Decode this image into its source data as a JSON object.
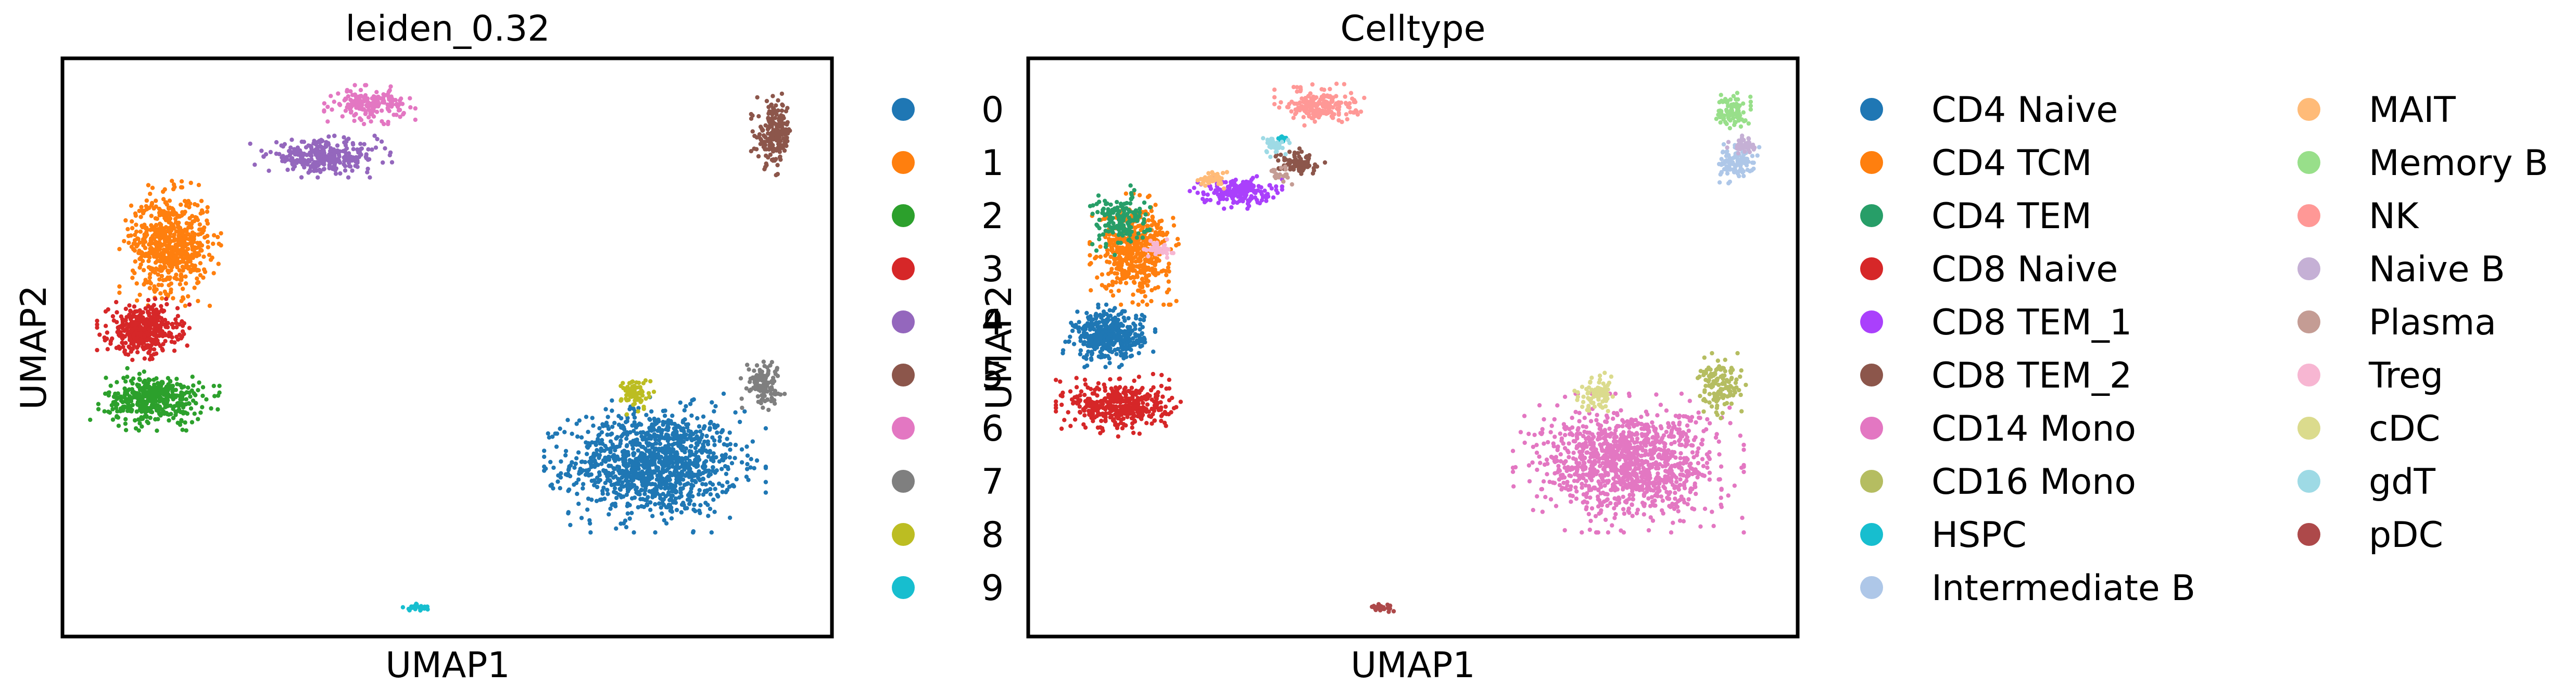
{
  "chart_data": [
    {
      "type": "scatter",
      "title": "leiden_0.32",
      "xlabel": "UMAP1",
      "ylabel": "UMAP2",
      "xlim": [
        0,
        100
      ],
      "ylim": [
        0,
        100
      ],
      "grid": false,
      "ticks": "hidden",
      "legend_position": "right",
      "legend_columns": 1,
      "series": [
        {
          "name": "0",
          "color": "#1f77b4",
          "clusters": [
            {
              "cx": 77,
              "cy": 30,
              "rx": 12,
              "ry": 10,
              "n": 1200
            }
          ]
        },
        {
          "name": "1",
          "color": "#ff7f0e",
          "clusters": [
            {
              "cx": 14,
              "cy": 68,
              "rx": 5.5,
              "ry": 9,
              "n": 650
            }
          ]
        },
        {
          "name": "2",
          "color": "#2ca02c",
          "clusters": [
            {
              "cx": 12,
              "cy": 41,
              "rx": 7,
              "ry": 4.5,
              "n": 420
            }
          ]
        },
        {
          "name": "3",
          "color": "#d62728",
          "clusters": [
            {
              "cx": 10.5,
              "cy": 53,
              "rx": 5,
              "ry": 4.5,
              "n": 420
            }
          ]
        },
        {
          "name": "4",
          "color": "#9467bd",
          "clusters": [
            {
              "cx": 34,
              "cy": 83,
              "rx": 8,
              "ry": 3,
              "n": 300
            }
          ]
        },
        {
          "name": "5",
          "color": "#8c564b",
          "clusters": [
            {
              "cx": 92.5,
              "cy": 87,
              "rx": 2.5,
              "ry": 6,
              "n": 200
            }
          ]
        },
        {
          "name": "6",
          "color": "#e377c2",
          "clusters": [
            {
              "cx": 40,
              "cy": 92,
              "rx": 5,
              "ry": 2.8,
              "n": 180
            }
          ]
        },
        {
          "name": "7",
          "color": "#7f7f7f",
          "clusters": [
            {
              "cx": 91,
              "cy": 44,
              "rx": 2.5,
              "ry": 4,
              "n": 110
            }
          ]
        },
        {
          "name": "8",
          "color": "#bcbd22",
          "clusters": [
            {
              "cx": 74.5,
              "cy": 42,
              "rx": 2,
              "ry": 3,
              "n": 70
            }
          ]
        },
        {
          "name": "9",
          "color": "#17becf",
          "clusters": [
            {
              "cx": 46,
              "cy": 5,
              "rx": 1.6,
              "ry": 0.6,
              "n": 30
            }
          ]
        }
      ]
    },
    {
      "type": "scatter",
      "title": "Celltype",
      "xlabel": "UMAP1",
      "ylabel": "UMAP2",
      "xlim": [
        0,
        100
      ],
      "ylim": [
        0,
        100
      ],
      "grid": false,
      "ticks": "hidden",
      "legend_position": "right",
      "legend_columns": 2,
      "series": [
        {
          "name": "CD4 Naive",
          "color": "#1f77b4",
          "clusters": [
            {
              "cx": 10.5,
              "cy": 52,
              "rx": 5,
              "ry": 4.5,
              "n": 420
            }
          ]
        },
        {
          "name": "CD4 TCM",
          "color": "#ff7f0e",
          "clusters": [
            {
              "cx": 14,
              "cy": 67,
              "rx": 5,
              "ry": 8,
              "n": 520
            }
          ]
        },
        {
          "name": "CD4 TEM",
          "color": "#279e68",
          "clusters": [
            {
              "cx": 12,
              "cy": 72,
              "rx": 4,
              "ry": 5,
              "n": 160
            }
          ]
        },
        {
          "name": "CD8 Naive",
          "color": "#d62728",
          "clusters": [
            {
              "cx": 12,
              "cy": 40,
              "rx": 7,
              "ry": 4.5,
              "n": 420
            }
          ]
        },
        {
          "name": "CD8 TEM_1",
          "color": "#aa40fc",
          "clusters": [
            {
              "cx": 27,
              "cy": 77,
              "rx": 5,
              "ry": 2.5,
              "n": 180
            }
          ]
        },
        {
          "name": "CD8 TEM_2",
          "color": "#8c564b",
          "clusters": [
            {
              "cx": 35,
              "cy": 82,
              "rx": 3,
              "ry": 2,
              "n": 80
            }
          ]
        },
        {
          "name": "CD14 Mono",
          "color": "#e377c2",
          "clusters": [
            {
              "cx": 78,
              "cy": 30,
              "rx": 12.5,
              "ry": 10,
              "n": 1200
            }
          ]
        },
        {
          "name": "CD16 Mono",
          "color": "#b5bd61",
          "clusters": [
            {
              "cx": 90,
              "cy": 43,
              "rx": 3,
              "ry": 5,
              "n": 130
            }
          ]
        },
        {
          "name": "HSPC",
          "color": "#17becf",
          "clusters": [
            {
              "cx": 33,
              "cy": 86,
              "rx": 1,
              "ry": 1,
              "n": 10
            }
          ]
        },
        {
          "name": "Intermediate B",
          "color": "#aec7e8",
          "clusters": [
            {
              "cx": 92,
              "cy": 82,
              "rx": 2.5,
              "ry": 3,
              "n": 110
            }
          ]
        },
        {
          "name": "MAIT",
          "color": "#ffbb78",
          "clusters": [
            {
              "cx": 24,
              "cy": 79,
              "rx": 2,
              "ry": 1.5,
              "n": 40
            }
          ]
        },
        {
          "name": "Memory B",
          "color": "#98df8a",
          "clusters": [
            {
              "cx": 91.5,
              "cy": 91,
              "rx": 2,
              "ry": 3,
              "n": 90
            }
          ]
        },
        {
          "name": "NK",
          "color": "#ff9896",
          "clusters": [
            {
              "cx": 38,
              "cy": 92,
              "rx": 5,
              "ry": 3,
              "n": 200
            }
          ]
        },
        {
          "name": "Naive B",
          "color": "#c5b0d5",
          "clusters": [
            {
              "cx": 93,
              "cy": 85,
              "rx": 1.8,
              "ry": 2,
              "n": 40
            }
          ]
        },
        {
          "name": "Plasma",
          "color": "#c49c94",
          "clusters": [
            {
              "cx": 33,
              "cy": 80,
              "rx": 1.5,
              "ry": 1.5,
              "n": 20
            }
          ]
        },
        {
          "name": "Treg",
          "color": "#f7b6d2",
          "clusters": [
            {
              "cx": 17,
              "cy": 67,
              "rx": 2,
              "ry": 1.5,
              "n": 40
            }
          ]
        },
        {
          "name": "cDC",
          "color": "#dbdb8d",
          "clusters": [
            {
              "cx": 74,
              "cy": 42,
              "rx": 2.5,
              "ry": 3,
              "n": 90
            }
          ]
        },
        {
          "name": "gdT",
          "color": "#9edae5",
          "clusters": [
            {
              "cx": 32,
              "cy": 85,
              "rx": 2,
              "ry": 2,
              "n": 40
            }
          ]
        },
        {
          "name": "pDC",
          "color": "#ad494a",
          "clusters": [
            {
              "cx": 46,
              "cy": 5,
              "rx": 1.6,
              "ry": 0.6,
              "n": 30
            }
          ]
        }
      ]
    }
  ]
}
